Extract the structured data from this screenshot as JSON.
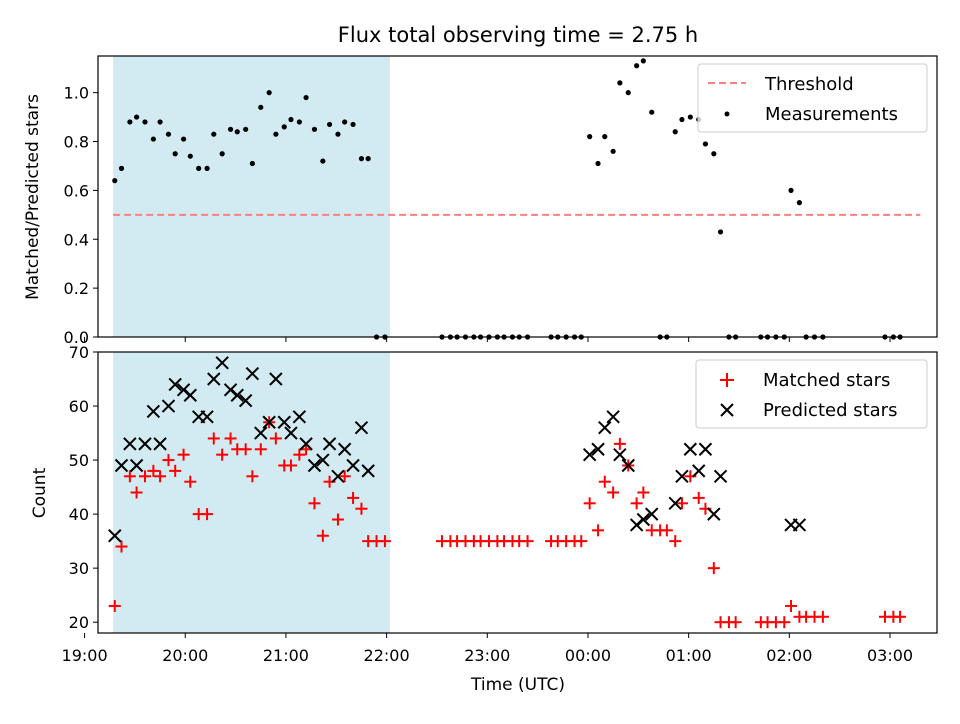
{
  "figure": {
    "title": "Flux total observing time = 2.75 h"
  },
  "chart_data": [
    {
      "type": "scatter",
      "ylabel": "Matched/Predicted stars",
      "xlabel": "",
      "xlim": [
        "19:00",
        "03:30"
      ],
      "ylim": [
        0,
        1.15
      ],
      "yticks": [
        0.0,
        0.2,
        0.4,
        0.6,
        0.8,
        1.0
      ],
      "shaded_interval": [
        "19:17",
        "22:02"
      ],
      "shade_color": "#add8e6",
      "threshold": {
        "name": "Threshold",
        "value": 0.5,
        "x_range": [
          "19:17",
          "03:18"
        ],
        "color": "#ff0000"
      },
      "legend": {
        "placement": "top-right",
        "entries": [
          "Threshold",
          "Measurements"
        ]
      },
      "series": [
        {
          "name": "Measurements",
          "color": "#000000",
          "points": [
            [
              "19:18",
              0.64
            ],
            [
              "19:22",
              0.69
            ],
            [
              "19:27",
              0.88
            ],
            [
              "19:31",
              0.9
            ],
            [
              "19:36",
              0.88
            ],
            [
              "19:41",
              0.81
            ],
            [
              "19:45",
              0.88
            ],
            [
              "19:50",
              0.83
            ],
            [
              "19:54",
              0.75
            ],
            [
              "19:59",
              0.81
            ],
            [
              "20:03",
              0.74
            ],
            [
              "20:08",
              0.69
            ],
            [
              "20:13",
              0.69
            ],
            [
              "20:17",
              0.83
            ],
            [
              "20:22",
              0.75
            ],
            [
              "20:27",
              0.85
            ],
            [
              "20:31",
              0.84
            ],
            [
              "20:36",
              0.85
            ],
            [
              "20:40",
              0.71
            ],
            [
              "20:45",
              0.94
            ],
            [
              "20:50",
              1.0
            ],
            [
              "20:54",
              0.83
            ],
            [
              "20:59",
              0.86
            ],
            [
              "21:03",
              0.89
            ],
            [
              "21:08",
              0.88
            ],
            [
              "21:12",
              0.98
            ],
            [
              "21:17",
              0.85
            ],
            [
              "21:22",
              0.72
            ],
            [
              "21:26",
              0.87
            ],
            [
              "21:31",
              0.83
            ],
            [
              "21:35",
              0.88
            ],
            [
              "21:40",
              0.87
            ],
            [
              "21:45",
              0.73
            ],
            [
              "21:49",
              0.73
            ],
            [
              "21:54",
              0.0
            ],
            [
              "21:59",
              0.0
            ],
            [
              "22:33",
              0.0
            ],
            [
              "22:38",
              0.0
            ],
            [
              "22:42",
              0.0
            ],
            [
              "22:47",
              0.0
            ],
            [
              "22:52",
              0.0
            ],
            [
              "22:56",
              0.0
            ],
            [
              "23:01",
              0.0
            ],
            [
              "23:06",
              0.0
            ],
            [
              "23:10",
              0.0
            ],
            [
              "23:15",
              0.0
            ],
            [
              "23:19",
              0.0
            ],
            [
              "23:24",
              0.0
            ],
            [
              "23:38",
              0.0
            ],
            [
              "23:42",
              0.0
            ],
            [
              "23:47",
              0.0
            ],
            [
              "23:52",
              0.0
            ],
            [
              "23:56",
              0.0
            ],
            [
              "00:01",
              0.82
            ],
            [
              "00:06",
              0.71
            ],
            [
              "00:10",
              0.82
            ],
            [
              "00:15",
              0.76
            ],
            [
              "00:19",
              1.04
            ],
            [
              "00:24",
              1.0
            ],
            [
              "00:29",
              1.11
            ],
            [
              "00:33",
              1.13
            ],
            [
              "00:38",
              0.92
            ],
            [
              "00:43",
              0.0
            ],
            [
              "00:47",
              0.0
            ],
            [
              "00:52",
              0.84
            ],
            [
              "00:56",
              0.89
            ],
            [
              "01:01",
              0.9
            ],
            [
              "01:06",
              0.89
            ],
            [
              "01:10",
              0.79
            ],
            [
              "01:15",
              0.75
            ],
            [
              "01:19",
              0.43
            ],
            [
              "01:24",
              0.0
            ],
            [
              "01:28",
              0.0
            ],
            [
              "01:43",
              0.0
            ],
            [
              "01:47",
              0.0
            ],
            [
              "01:52",
              0.0
            ],
            [
              "01:57",
              0.0
            ],
            [
              "02:01",
              0.6
            ],
            [
              "02:06",
              0.55
            ],
            [
              "02:10",
              0.0
            ],
            [
              "02:15",
              0.0
            ],
            [
              "02:20",
              0.0
            ],
            [
              "02:57",
              0.0
            ],
            [
              "03:02",
              0.0
            ],
            [
              "03:06",
              0.0
            ]
          ]
        }
      ]
    },
    {
      "type": "scatter",
      "ylabel": "Count",
      "xlabel": "Time (UTC)",
      "xlim": [
        "19:00",
        "03:30"
      ],
      "ylim": [
        18,
        70
      ],
      "yticks": [
        20,
        30,
        40,
        50,
        60,
        70
      ],
      "xticks": [
        "19:00",
        "20:00",
        "21:00",
        "22:00",
        "23:00",
        "00:00",
        "01:00",
        "02:00",
        "03:00"
      ],
      "shaded_interval": [
        "19:17",
        "22:02"
      ],
      "shade_color": "#add8e6",
      "legend": {
        "placement": "top-right",
        "entries": [
          "Matched stars",
          "Predicted stars"
        ]
      },
      "series": [
        {
          "name": "Matched stars",
          "marker": "plus",
          "color": "#ff0000",
          "points": [
            [
              "19:18",
              23
            ],
            [
              "19:22",
              34
            ],
            [
              "19:27",
              47
            ],
            [
              "19:31",
              44
            ],
            [
              "19:36",
              47
            ],
            [
              "19:41",
              48
            ],
            [
              "19:45",
              47
            ],
            [
              "19:50",
              50
            ],
            [
              "19:54",
              48
            ],
            [
              "19:59",
              51
            ],
            [
              "20:03",
              46
            ],
            [
              "20:08",
              40
            ],
            [
              "20:13",
              40
            ],
            [
              "20:17",
              54
            ],
            [
              "20:22",
              51
            ],
            [
              "20:27",
              54
            ],
            [
              "20:31",
              52
            ],
            [
              "20:36",
              52
            ],
            [
              "20:40",
              47
            ],
            [
              "20:45",
              52
            ],
            [
              "20:50",
              57
            ],
            [
              "20:54",
              54
            ],
            [
              "20:59",
              49
            ],
            [
              "21:03",
              49
            ],
            [
              "21:08",
              51
            ],
            [
              "21:12",
              52
            ],
            [
              "21:17",
              42
            ],
            [
              "21:22",
              36
            ],
            [
              "21:26",
              46
            ],
            [
              "21:31",
              39
            ],
            [
              "21:35",
              47
            ],
            [
              "21:40",
              43
            ],
            [
              "21:45",
              41
            ],
            [
              "21:49",
              35
            ],
            [
              "21:54",
              35
            ],
            [
              "21:59",
              35
            ],
            [
              "22:33",
              35
            ],
            [
              "22:38",
              35
            ],
            [
              "22:42",
              35
            ],
            [
              "22:47",
              35
            ],
            [
              "22:52",
              35
            ],
            [
              "22:56",
              35
            ],
            [
              "23:01",
              35
            ],
            [
              "23:06",
              35
            ],
            [
              "23:10",
              35
            ],
            [
              "23:15",
              35
            ],
            [
              "23:19",
              35
            ],
            [
              "23:24",
              35
            ],
            [
              "23:38",
              35
            ],
            [
              "23:42",
              35
            ],
            [
              "23:47",
              35
            ],
            [
              "23:52",
              35
            ],
            [
              "23:56",
              35
            ],
            [
              "00:01",
              42
            ],
            [
              "00:06",
              37
            ],
            [
              "00:10",
              46
            ],
            [
              "00:15",
              44
            ],
            [
              "00:19",
              53
            ],
            [
              "00:24",
              49
            ],
            [
              "00:29",
              42
            ],
            [
              "00:33",
              44
            ],
            [
              "00:38",
              37
            ],
            [
              "00:43",
              37
            ],
            [
              "00:47",
              37
            ],
            [
              "00:52",
              35
            ],
            [
              "00:56",
              42
            ],
            [
              "01:01",
              47
            ],
            [
              "01:06",
              43
            ],
            [
              "01:10",
              41
            ],
            [
              "01:15",
              30
            ],
            [
              "01:19",
              20
            ],
            [
              "01:24",
              20
            ],
            [
              "01:28",
              20
            ],
            [
              "01:43",
              20
            ],
            [
              "01:47",
              20
            ],
            [
              "01:52",
              20
            ],
            [
              "01:57",
              20
            ],
            [
              "02:01",
              23
            ],
            [
              "02:06",
              21
            ],
            [
              "02:10",
              21
            ],
            [
              "02:15",
              21
            ],
            [
              "02:20",
              21
            ],
            [
              "02:57",
              21
            ],
            [
              "03:02",
              21
            ],
            [
              "03:06",
              21
            ]
          ]
        },
        {
          "name": "Predicted stars",
          "marker": "x",
          "color": "#000000",
          "points": [
            [
              "19:18",
              36
            ],
            [
              "19:22",
              49
            ],
            [
              "19:27",
              53
            ],
            [
              "19:31",
              49
            ],
            [
              "19:36",
              53
            ],
            [
              "19:41",
              59
            ],
            [
              "19:45",
              53
            ],
            [
              "19:50",
              60
            ],
            [
              "19:54",
              64
            ],
            [
              "19:59",
              63
            ],
            [
              "20:03",
              62
            ],
            [
              "20:08",
              58
            ],
            [
              "20:13",
              58
            ],
            [
              "20:17",
              65
            ],
            [
              "20:22",
              68
            ],
            [
              "20:27",
              63
            ],
            [
              "20:31",
              62
            ],
            [
              "20:36",
              61
            ],
            [
              "20:40",
              66
            ],
            [
              "20:45",
              55
            ],
            [
              "20:50",
              57
            ],
            [
              "20:54",
              65
            ],
            [
              "20:59",
              57
            ],
            [
              "21:03",
              55
            ],
            [
              "21:08",
              58
            ],
            [
              "21:12",
              53
            ],
            [
              "21:17",
              49
            ],
            [
              "21:22",
              50
            ],
            [
              "21:26",
              53
            ],
            [
              "21:31",
              47
            ],
            [
              "21:35",
              52
            ],
            [
              "21:40",
              49
            ],
            [
              "21:45",
              56
            ],
            [
              "21:49",
              48
            ],
            [
              "00:01",
              51
            ],
            [
              "00:06",
              52
            ],
            [
              "00:10",
              56
            ],
            [
              "00:15",
              58
            ],
            [
              "00:19",
              51
            ],
            [
              "00:24",
              49
            ],
            [
              "00:29",
              38
            ],
            [
              "00:33",
              39
            ],
            [
              "00:38",
              40
            ],
            [
              "00:52",
              42
            ],
            [
              "00:56",
              47
            ],
            [
              "01:01",
              52
            ],
            [
              "01:06",
              48
            ],
            [
              "01:10",
              52
            ],
            [
              "01:15",
              40
            ],
            [
              "01:19",
              47
            ],
            [
              "02:01",
              38
            ],
            [
              "02:06",
              38
            ]
          ]
        }
      ]
    }
  ]
}
